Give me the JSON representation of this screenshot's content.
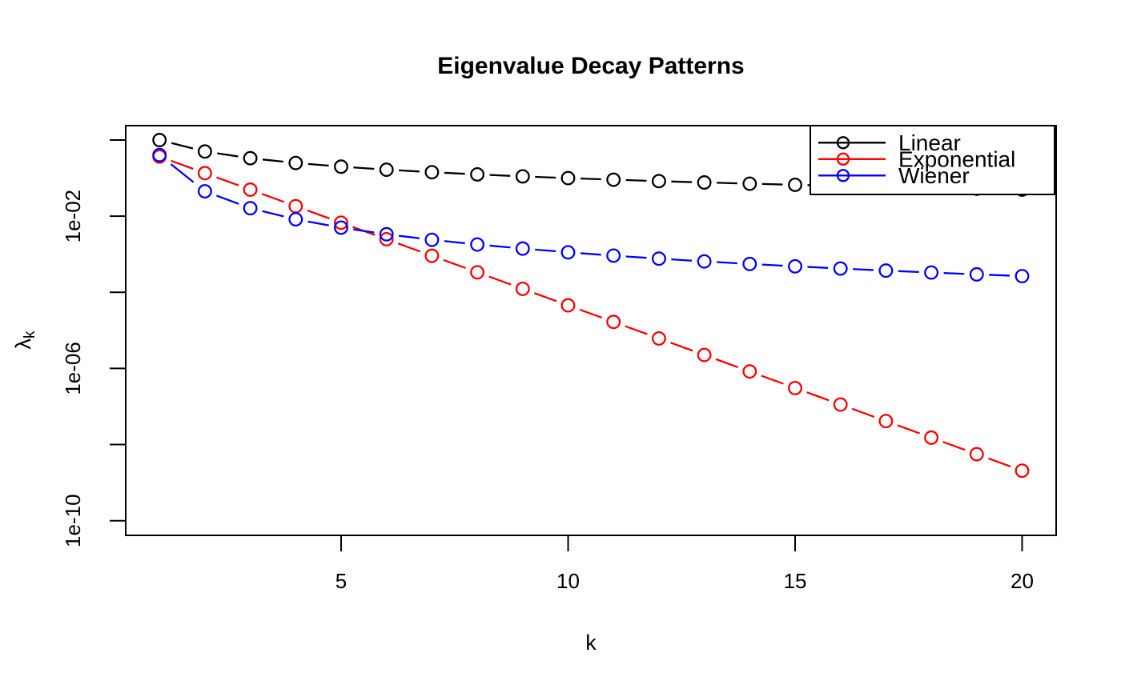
{
  "figure": {
    "background": "#ffffff",
    "frame_color": "#000000"
  },
  "chart_data": {
    "type": "line",
    "title": "Eigenvalue Decay Patterns",
    "xlabel": "k",
    "ylabel": "λk",
    "ylabel_main": "λ",
    "ylabel_sub": "k",
    "x": [
      1,
      2,
      3,
      4,
      5,
      6,
      7,
      8,
      9,
      10,
      11,
      12,
      13,
      14,
      15,
      16,
      17,
      18,
      19,
      20
    ],
    "series": [
      {
        "name": "Linear",
        "color": "#000000",
        "marker": "open-circle",
        "linestyle": "dashed",
        "values": [
          1.0,
          0.5,
          0.333333,
          0.25,
          0.2,
          0.166667,
          0.142857,
          0.125,
          0.111111,
          0.1,
          0.0909091,
          0.0833333,
          0.0769231,
          0.0714286,
          0.0666667,
          0.0625,
          0.0588235,
          0.0555556,
          0.0526316,
          0.05
        ]
      },
      {
        "name": "Exponential",
        "color": "#ff0000",
        "marker": "open-circle",
        "linestyle": "dashed",
        "values": [
          0.367879,
          0.135335,
          0.0497871,
          0.0183156,
          0.00673795,
          0.00247875,
          0.000911882,
          0.000335463,
          0.00012341,
          4.53999e-05,
          1.67017e-05,
          6.14421e-06,
          2.26033e-06,
          8.31529e-07,
          3.05902e-07,
          1.12535e-07,
          4.13994e-08,
          1.523e-08,
          5.6028e-09,
          2.06115e-09
        ]
      },
      {
        "name": "Wiener",
        "color": "#0000ff",
        "marker": "open-circle",
        "linestyle": "dashed",
        "values": [
          0.405285,
          0.0450316,
          0.0162114,
          0.00827112,
          0.00500352,
          0.00334946,
          0.00239814,
          0.00180127,
          0.00140928,
          0.00112267,
          0.00091902,
          0.000766133,
          0.000648456,
          0.000555947,
          0.000481883,
          0.000421641,
          0.000372067,
          0.000330764,
          0.000295936,
          0.000266453
        ]
      }
    ],
    "x_axis": {
      "label": "k",
      "ticks": [
        5,
        10,
        15,
        20
      ],
      "range_data": [
        1,
        20
      ]
    },
    "y_axis": {
      "scale": "log10",
      "ticks": [
        {
          "exponent": 0,
          "label": ""
        },
        {
          "exponent": -2,
          "label": "1e-02"
        },
        {
          "exponent": -4,
          "label": ""
        },
        {
          "exponent": -6,
          "label": "1e-06"
        },
        {
          "exponent": -8,
          "label": ""
        },
        {
          "exponent": -10,
          "label": "1e-10"
        }
      ]
    },
    "legend": {
      "position": "topright",
      "entries": [
        {
          "label": "Linear",
          "color": "#000000"
        },
        {
          "label": "Exponential",
          "color": "#ff0000"
        },
        {
          "label": "Wiener",
          "color": "#0000ff"
        }
      ]
    },
    "grid": false
  }
}
